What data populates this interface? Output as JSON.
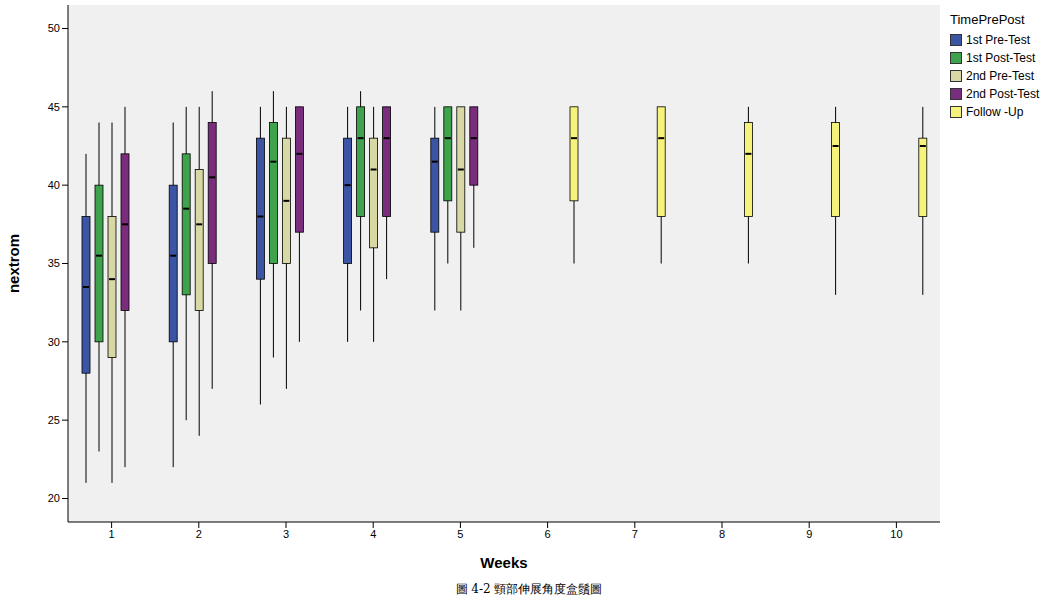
{
  "chart_data": {
    "type": "box",
    "x_label": "Weeks",
    "y_label": "nextrom",
    "legend_title": "TimePrePost",
    "annotations": [
      "圖 4-2 頸部伸展角度盒鬚圖"
    ],
    "categories": [
      "1",
      "2",
      "3",
      "4",
      "5",
      "6",
      "7",
      "8",
      "9",
      "10"
    ],
    "ylim": [
      18.5,
      51.5
    ],
    "yticks": [
      20,
      25,
      30,
      35,
      40,
      45,
      50
    ],
    "grid": false,
    "legend": "right",
    "series": [
      {
        "name": "1st Pre-Test",
        "color": "#3b54a4",
        "values": [
          {
            "min": 21,
            "q1": 28,
            "median": 33.5,
            "q3": 38,
            "max": 42
          },
          {
            "min": 22,
            "q1": 30,
            "median": 35.5,
            "q3": 40,
            "max": 44
          },
          {
            "min": 26,
            "q1": 34,
            "median": 38,
            "q3": 43,
            "max": 45
          },
          {
            "min": 30,
            "q1": 35,
            "median": 40,
            "q3": 43,
            "max": 45
          },
          {
            "min": 32,
            "q1": 37,
            "median": 41.5,
            "q3": 43,
            "max": 45
          },
          null,
          null,
          null,
          null,
          null
        ]
      },
      {
        "name": "1st Post-Test",
        "color": "#3fa34d",
        "values": [
          {
            "min": 23,
            "q1": 30,
            "median": 35.5,
            "q3": 40,
            "max": 44
          },
          {
            "min": 25,
            "q1": 33,
            "median": 38.5,
            "q3": 42,
            "max": 45
          },
          {
            "min": 29,
            "q1": 35,
            "median": 41.5,
            "q3": 44,
            "max": 46
          },
          {
            "min": 32,
            "q1": 38,
            "median": 43,
            "q3": 45,
            "max": 46
          },
          {
            "min": 35,
            "q1": 39,
            "median": 43,
            "q3": 45,
            "max": 45
          },
          null,
          null,
          null,
          null,
          null
        ]
      },
      {
        "name": "2nd Pre-Test",
        "color": "#d8d8a4",
        "values": [
          {
            "min": 21,
            "q1": 29,
            "median": 34,
            "q3": 38,
            "max": 44
          },
          {
            "min": 24,
            "q1": 32,
            "median": 37.5,
            "q3": 41,
            "max": 45
          },
          {
            "min": 27,
            "q1": 35,
            "median": 39,
            "q3": 43,
            "max": 45
          },
          {
            "min": 30,
            "q1": 36,
            "median": 41,
            "q3": 43,
            "max": 45
          },
          {
            "min": 32,
            "q1": 37,
            "median": 41,
            "q3": 45,
            "max": 45
          },
          null,
          null,
          null,
          null,
          null
        ]
      },
      {
        "name": "2nd Post-Test",
        "color": "#7a2c7d",
        "values": [
          {
            "min": 22,
            "q1": 32,
            "median": 37.5,
            "q3": 42,
            "max": 45
          },
          {
            "min": 27,
            "q1": 35,
            "median": 40.5,
            "q3": 44,
            "max": 46
          },
          {
            "min": 30,
            "q1": 37,
            "median": 42,
            "q3": 45,
            "max": 45
          },
          {
            "min": 34,
            "q1": 38,
            "median": 43,
            "q3": 45,
            "max": 45
          },
          {
            "min": 36,
            "q1": 40,
            "median": 43,
            "q3": 45,
            "max": 45
          },
          null,
          null,
          null,
          null,
          null
        ]
      },
      {
        "name": "Follow -Up",
        "color": "#f6f37c",
        "values": [
          null,
          null,
          null,
          null,
          null,
          {
            "min": 35,
            "q1": 39,
            "median": 43,
            "q3": 45,
            "max": 45
          },
          {
            "min": 35,
            "q1": 38,
            "median": 43,
            "q3": 45,
            "max": 45
          },
          {
            "min": 35,
            "q1": 38,
            "median": 42,
            "q3": 44,
            "max": 45
          },
          {
            "min": 33,
            "q1": 38,
            "median": 42.5,
            "q3": 44,
            "max": 45
          },
          {
            "min": 33,
            "q1": 38,
            "median": 42.5,
            "q3": 43,
            "max": 45
          }
        ]
      }
    ]
  }
}
